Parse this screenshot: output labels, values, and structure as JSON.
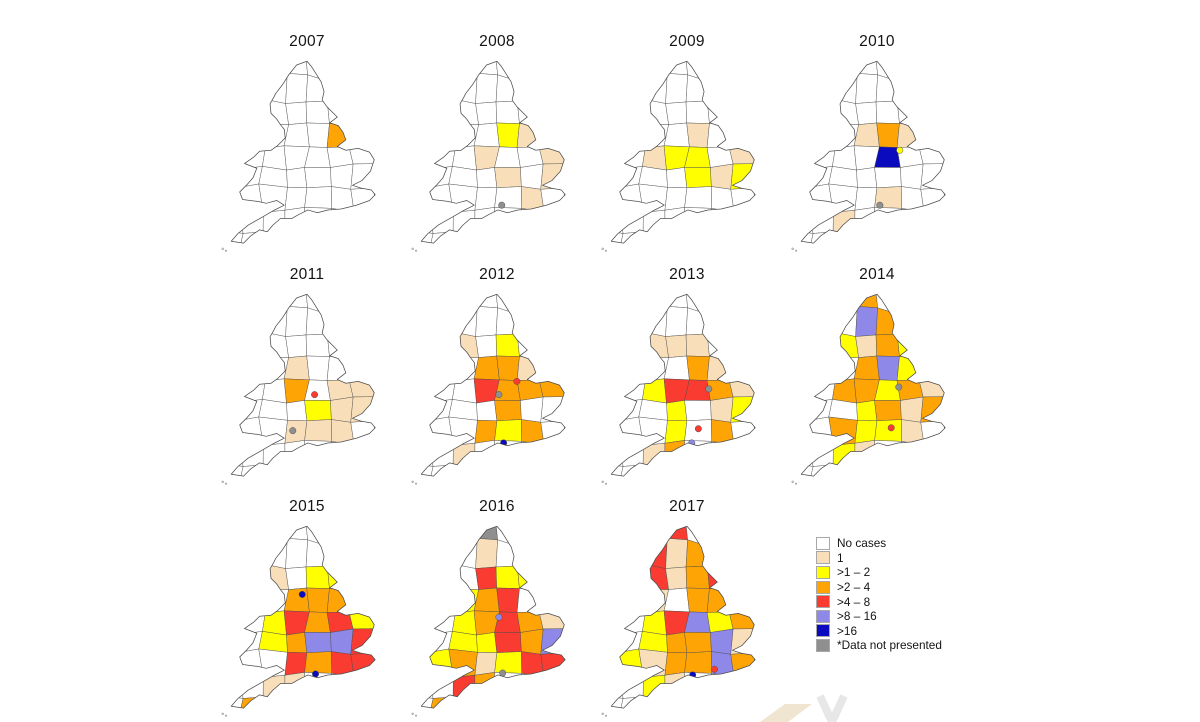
{
  "page": {
    "background": "#FFFFFF"
  },
  "legend": {
    "items": [
      {
        "code": "n",
        "label": "No cases",
        "color": "#FFFFFF"
      },
      {
        "code": "1",
        "label": "1",
        "color": "#F9DFB9"
      },
      {
        "code": "y",
        "label": ">1 – 2",
        "color": "#FFFF00"
      },
      {
        "code": "o",
        "label": ">2 – 4",
        "color": "#FFA405"
      },
      {
        "code": "r",
        "label": ">4 – 8",
        "color": "#F93B31"
      },
      {
        "code": "p",
        "label": ">8 – 16",
        "color": "#8E88E8"
      },
      {
        "code": "b",
        "label": ">16",
        "color": "#0A0ABE"
      },
      {
        "code": "x",
        "label": "*Data not presented",
        "color": "#8F8F8F"
      }
    ]
  },
  "chart_data": {
    "type": "choropleth_small_multiples",
    "geography": "England and Wales counties",
    "outline_color": "#4D4D4D",
    "colors": {
      "n": "#FFFFFF",
      "1": "#F9DFB9",
      "y": "#FFFF00",
      "o": "#FFA405",
      "r": "#F93B31",
      "p": "#8E88E8",
      "b": "#0A0ABE",
      "x": "#8F8F8F"
    },
    "categories": [
      "No cases",
      "1",
      ">1 – 2",
      ">2 – 4",
      ">4 – 8",
      ">8 – 16",
      ">16",
      "*Data not presented"
    ],
    "years": [
      {
        "year": "2007",
        "cells": {
          "r3c5": "o"
        },
        "dots": []
      },
      {
        "year": "2008",
        "cells": {
          "r3c4": "y",
          "r3c5": "1",
          "r4c6": "1",
          "r5c6": "1",
          "r4c3": "1",
          "r5c4": "1",
          "r6c5": "1"
        },
        "dots": [
          [
            100,
            158,
            "x"
          ]
        ]
      },
      {
        "year": "2009",
        "cells": {
          "r3c4": "1",
          "r4c2": "1",
          "r4c3": "y",
          "r4c4": "y",
          "r5c4": "y",
          "r4c6": "1",
          "r5c6": "y",
          "r5c5": "1"
        },
        "dots": []
      },
      {
        "year": "2010",
        "cells": {
          "r3c4": "o",
          "r4c4": "b",
          "r3c5": "1",
          "r3c3": "1",
          "r6c4": "1",
          "r7c2": "1"
        },
        "dots": [
          [
            119,
            100,
            "y"
          ],
          [
            98,
            158,
            "x"
          ]
        ]
      },
      {
        "year": "2011",
        "cells": {
          "r3c3": "1",
          "r4c3": "o",
          "r5c4": "y",
          "r4c5": "1",
          "r4c6": "1",
          "r5c5": "1",
          "r5c6": "1",
          "r6c3": "1",
          "r6c4": "1",
          "r6c5": "1"
        },
        "dots": [
          [
            103,
            112,
            "r"
          ],
          [
            80,
            150,
            "x"
          ]
        ]
      },
      {
        "year": "2012",
        "cells": {
          "r2c2": "1",
          "r2c4": "y",
          "r3c3": "o",
          "r3c4": "o",
          "r3c5": "1",
          "r4c3": "r",
          "r4c4": "o",
          "r4c5": "o",
          "r4c6": "o",
          "r5c4": "o",
          "r6c3": "o",
          "r6c4": "y",
          "r6c5": "o",
          "r7c2": "1"
        },
        "dots": [
          [
            116,
            98,
            "r"
          ],
          [
            97,
            112,
            "x"
          ],
          [
            102,
            163,
            "b"
          ]
        ]
      },
      {
        "year": "2013",
        "cells": {
          "r2c2": "1",
          "r2c3": "1",
          "r2c4": "1",
          "r3c4": "o",
          "r3c5": "1",
          "r4c2": "y",
          "r4c3": "r",
          "r4c4": "r",
          "r4c5": "o",
          "r4c6": "1",
          "r5c3": "y",
          "r5c5": "1",
          "r5c6": "y",
          "r6c3": "y",
          "r6c5": "o",
          "r7c3": "o",
          "r7c2": "1"
        },
        "dots": [
          [
            118,
            106,
            "x"
          ],
          [
            107,
            148,
            "r"
          ],
          [
            100,
            163,
            "p"
          ]
        ]
      },
      {
        "year": "2014",
        "cells": {
          "r0c3": "o",
          "r1c3": "p",
          "r1c4": "o",
          "r2c2": "y",
          "r2c3": "1",
          "r2c4": "o",
          "r2c5": "y",
          "r3c3": "o",
          "r3c4": "p",
          "r3c5": "y",
          "r4c2": "o",
          "r4c3": "o",
          "r4c4": "y",
          "r4c5": "o",
          "r4c6": "1",
          "r5c3": "y",
          "r5c4": "o",
          "r5c5": "1",
          "r5c6": "o",
          "r6c2": "o",
          "r6c3": "y",
          "r6c4": "y",
          "r6c5": "1",
          "r7c2": "y",
          "r7c3": "1"
        },
        "dots": [
          [
            118,
            104,
            "x"
          ],
          [
            110,
            147,
            "r"
          ]
        ]
      },
      {
        "year": "2015",
        "cells": {
          "r2c2": "1",
          "r2c4": "y",
          "r2c5": "y",
          "r3c3": "o",
          "r3c4": "o",
          "r3c5": "o",
          "r4c2": "y",
          "r4c3": "r",
          "r4c4": "o",
          "r4c5": "r",
          "r4c6": "y",
          "r5c2": "y",
          "r5c3": "o",
          "r5c4": "p",
          "r5c5": "p",
          "r5c6": "r",
          "r6c3": "r",
          "r6c4": "o",
          "r6c5": "r",
          "r6c6": "r",
          "r7c2": "1",
          "r7c3": "1",
          "r8c1": "o"
        },
        "dots": [
          [
            90,
            78,
            "b"
          ],
          [
            104,
            162,
            "b"
          ]
        ]
      },
      {
        "year": "2016",
        "cells": {
          "r0c3": "x",
          "r1c3": "1",
          "r2c3": "r",
          "r2c4": "y",
          "r2c5": "y",
          "r3c2": "y",
          "r3c3": "o",
          "r3c4": "r",
          "r4c2": "y",
          "r4c3": "o",
          "r4c4": "r",
          "r4c5": "o",
          "r4c6": "1",
          "r5c2": "y",
          "r5c3": "y",
          "r5c4": "r",
          "r5c5": "o",
          "r5c6": "p",
          "r6c1": "y",
          "r6c2": "o",
          "r6c3": "1",
          "r6c4": "y",
          "r6c5": "r",
          "r6c6": "r",
          "r7c2": "r",
          "r7c3": "o",
          "r8c1": "o"
        },
        "dots": [
          [
            97,
            102,
            "p"
          ],
          [
            101,
            161,
            "x"
          ]
        ]
      },
      {
        "year": "2017",
        "cells": {
          "r0c3": "r",
          "r1c2": "r",
          "r1c3": "1",
          "r1c4": "o",
          "r2c2": "r",
          "r2c3": "1",
          "r2c4": "o",
          "r2c5": "r",
          "r3c2": "1",
          "r3c4": "o",
          "r3c5": "o",
          "r4c2": "y",
          "r4c3": "r",
          "r4c4": "p",
          "r4c5": "y",
          "r4c6": "o",
          "r5c2": "y",
          "r5c3": "o",
          "r5c4": "o",
          "r5c5": "p",
          "r5c6": "1",
          "r6c1": "y",
          "r6c2": "1",
          "r6c3": "o",
          "r6c4": "o",
          "r6c5": "p",
          "r6c6": "o",
          "r7c2": "y",
          "r7c3": "1"
        },
        "dots": [
          [
            124,
            157,
            "r"
          ],
          [
            101,
            163,
            "b"
          ]
        ]
      }
    ]
  },
  "watermark": {
    "shape_colors": [
      "#ECDFC6",
      "#E4E4E4"
    ]
  }
}
